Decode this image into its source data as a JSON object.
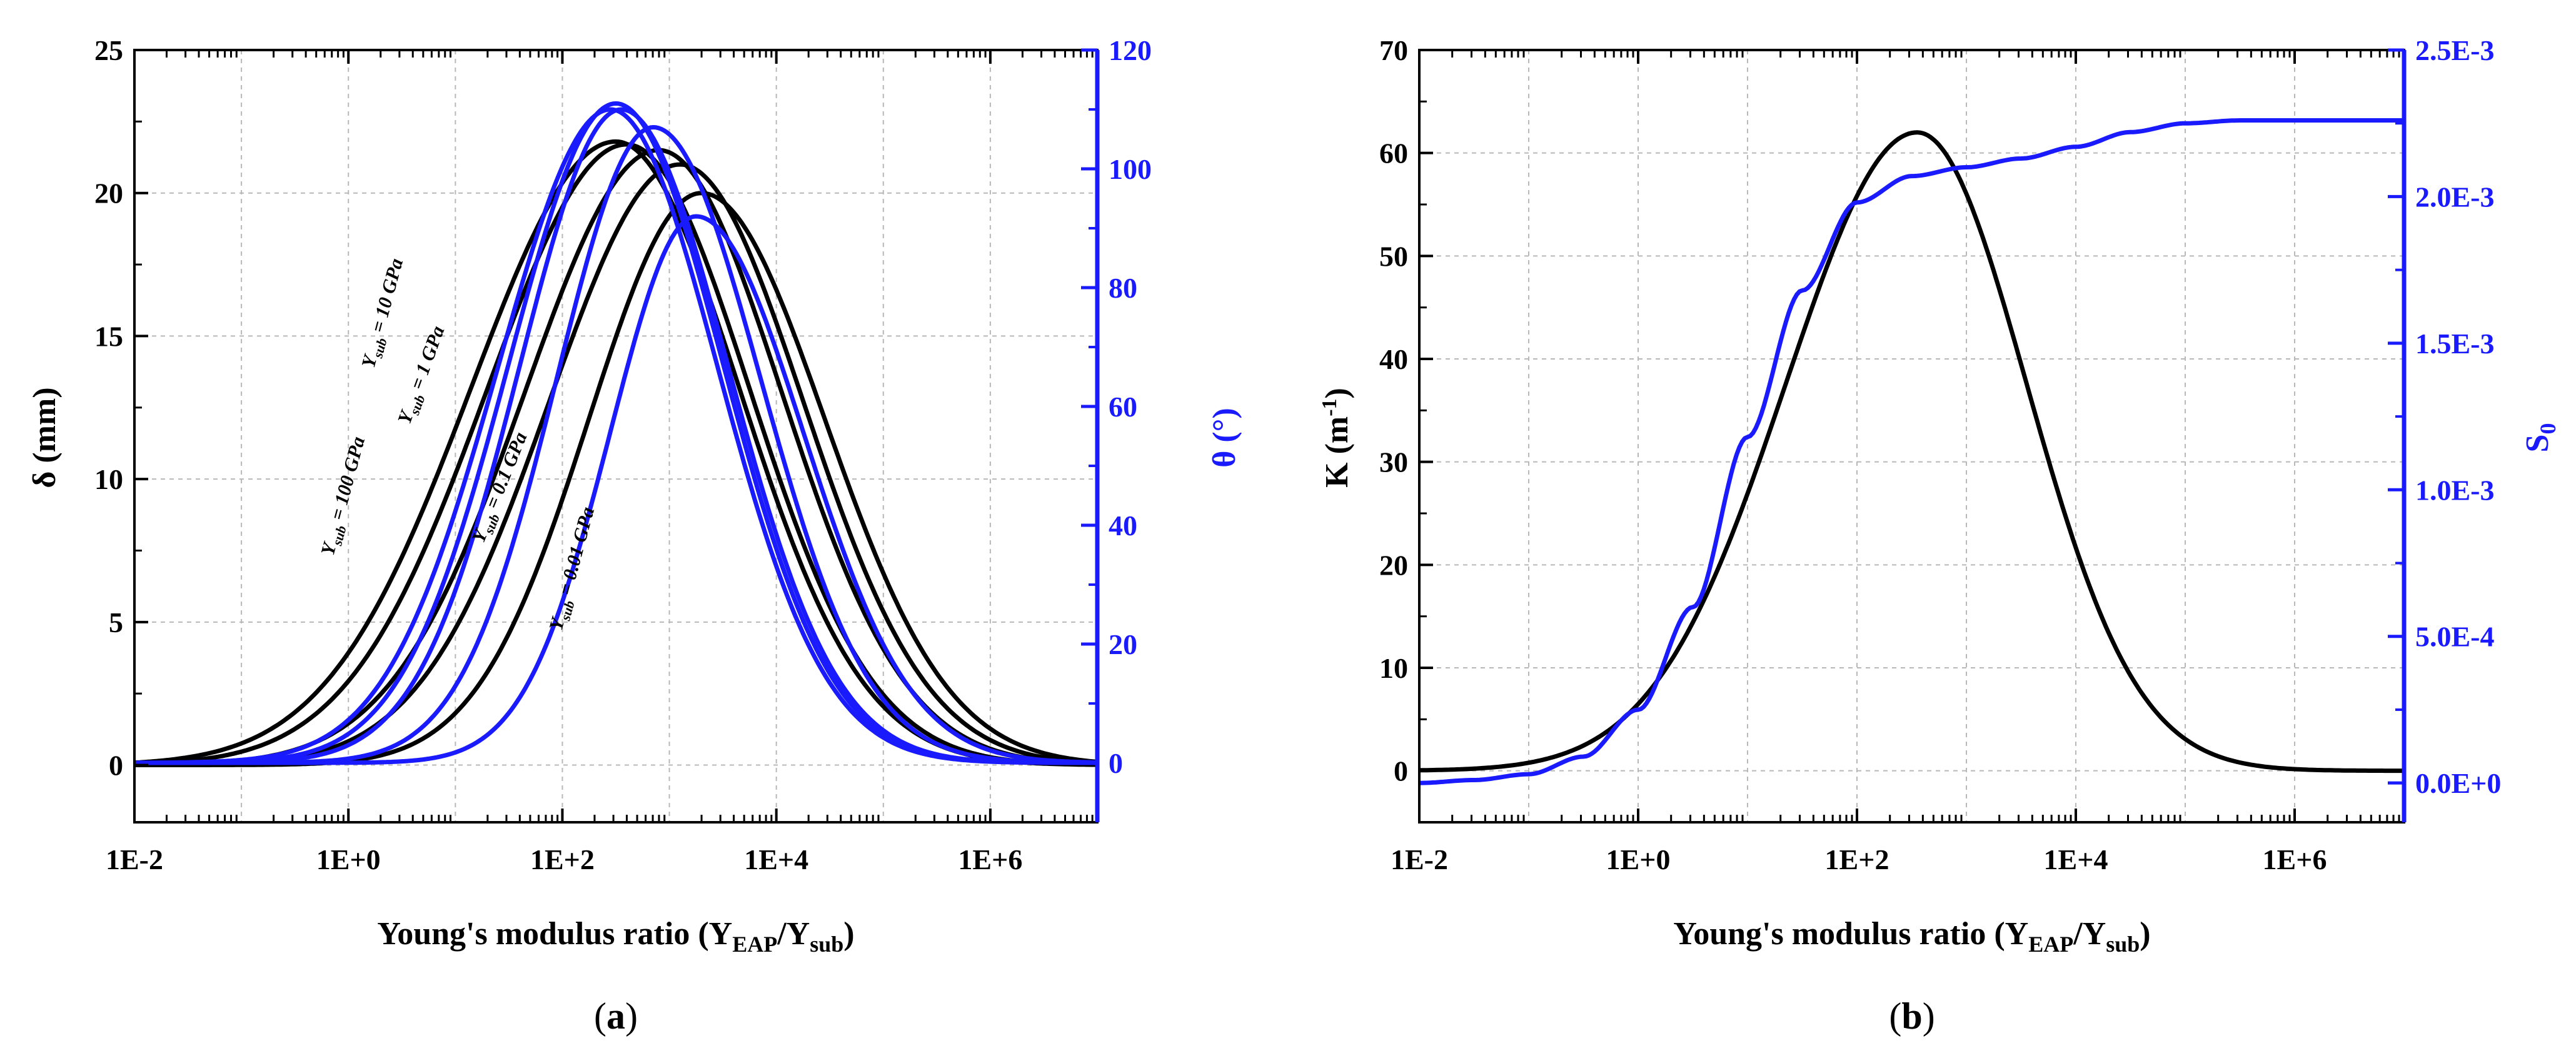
{
  "figure": {
    "xlabel_main": "Young's modulus ratio (Y",
    "xlabel_sub1": "EAP",
    "xlabel_mid": "/Y",
    "xlabel_sub2": "sub",
    "xlabel_end": ")"
  },
  "chart_data": [
    {
      "panel": "a",
      "panel_label_open": "(",
      "panel_label_letter": "a",
      "panel_label_close": ")",
      "type": "line",
      "x_scale": "log10",
      "xlim_exp": [
        -2,
        7
      ],
      "x_ticks_exp": [
        -2,
        0,
        2,
        4,
        6
      ],
      "x_tick_labels": [
        "1E-2",
        "1E+0",
        "1E+2",
        "1E+4",
        "1E+6"
      ],
      "ylim_left": [
        -2,
        25
      ],
      "y_ticks_left": [
        0,
        5,
        10,
        15,
        20,
        25
      ],
      "ylim_right": [
        -10,
        120
      ],
      "y_ticks_right": [
        0,
        20,
        40,
        60,
        80,
        100,
        120
      ],
      "ylabel_left": "δ (mm)",
      "ylabel_right": "θ (°)",
      "grid": true,
      "series": [
        {
          "name": "δ, Ysub = 100 GPa",
          "axis": "left",
          "color": "#000000",
          "peak": 21.8,
          "center_exp": 2.5,
          "wl": 1.35,
          "wr": 1.15
        },
        {
          "name": "δ, Ysub = 10 GPa",
          "axis": "left",
          "color": "#000000",
          "peak": 21.7,
          "center_exp": 2.6,
          "wl": 1.3,
          "wr": 1.15
        },
        {
          "name": "δ, Ysub = 1 GPa",
          "axis": "left",
          "color": "#000000",
          "peak": 21.5,
          "center_exp": 2.9,
          "wl": 1.25,
          "wr": 1.15
        },
        {
          "name": "δ, Ysub = 0.1 GPa",
          "axis": "left",
          "color": "#000000",
          "peak": 21.0,
          "center_exp": 3.1,
          "wl": 1.22,
          "wr": 1.15
        },
        {
          "name": "δ, Ysub = 0.01 GPa",
          "axis": "left",
          "color": "#000000",
          "peak": 20.0,
          "center_exp": 3.3,
          "wl": 1.05,
          "wr": 1.15
        },
        {
          "name": "θ, Ysub = 100 GPa",
          "axis": "right",
          "color": "#1a1aff",
          "peak": 110.0,
          "center_exp": 2.45,
          "wl": 1.05,
          "wr": 1.0
        },
        {
          "name": "θ, Ysub = 10 GPa",
          "axis": "right",
          "color": "#1a1aff",
          "peak": 111.0,
          "center_exp": 2.5,
          "wl": 1.0,
          "wr": 1.0
        },
        {
          "name": "θ, Ysub = 1 GPa",
          "axis": "right",
          "color": "#1a1aff",
          "peak": 110.0,
          "center_exp": 2.55,
          "wl": 0.95,
          "wr": 1.0
        },
        {
          "name": "θ, Ysub = 0.1 GPa",
          "axis": "right",
          "color": "#1a1aff",
          "peak": 107.0,
          "center_exp": 2.85,
          "wl": 0.9,
          "wr": 1.0
        },
        {
          "name": "θ, Ysub = 0.01 GPa",
          "axis": "right",
          "color": "#1a1aff",
          "peak": 92.0,
          "center_exp": 3.25,
          "wl": 0.8,
          "wr": 1.0
        }
      ],
      "annotations": [
        {
          "prefix": "Y",
          "sub": "sub",
          "value": " = 100 GPa"
        },
        {
          "prefix": "Y",
          "sub": "sub",
          "value": " = 10 GPa"
        },
        {
          "prefix": "Y",
          "sub": "sub",
          "value": " = 1 GPa"
        },
        {
          "prefix": "Y",
          "sub": "sub",
          "value": " = 0.1 GPa"
        },
        {
          "prefix": "Y",
          "sub": "sub",
          "value": " = 0.01 GPa"
        }
      ]
    },
    {
      "panel": "b",
      "panel_label_open": "(",
      "panel_label_letter": "b",
      "panel_label_close": ")",
      "type": "line",
      "x_scale": "log10",
      "xlim_exp": [
        -2,
        7
      ],
      "x_ticks_exp": [
        -2,
        0,
        2,
        4,
        6
      ],
      "x_tick_labels": [
        "1E-2",
        "1E+0",
        "1E+2",
        "1E+4",
        "1E+6"
      ],
      "ylim_left": [
        -5,
        70
      ],
      "y_ticks_left": [
        0,
        10,
        20,
        30,
        40,
        50,
        60,
        70
      ],
      "ylim_right": [
        -0.000134,
        0.0025
      ],
      "y_ticks_right": [
        0,
        0.0005,
        0.001,
        0.0015,
        0.002,
        0.0025
      ],
      "y_tick_labels_right": [
        "0.0E+0",
        "5.0E-4",
        "1.0E-3",
        "1.5E-3",
        "2.0E-3",
        "2.5E-3"
      ],
      "ylabel_left_main": "K (m",
      "ylabel_left_sup": "-1",
      "ylabel_left_end": ")",
      "ylabel_right_main": "S",
      "ylabel_right_sub": "0",
      "grid": true,
      "series": [
        {
          "name": "K",
          "axis": "left",
          "color": "#000000",
          "peak": 62.0,
          "center_exp": 2.55,
          "wl": 1.2,
          "wr": 1.0
        },
        {
          "name": "S0",
          "axis": "right",
          "color": "#1a1aff",
          "points_exp": [
            [
              -2,
              0.0
            ],
            [
              -1.5,
              1e-05
            ],
            [
              -1,
              3e-05
            ],
            [
              -0.5,
              9e-05
            ],
            [
              0,
              0.00025
            ],
            [
              0.5,
              0.0006
            ],
            [
              1,
              0.00118
            ],
            [
              1.5,
              0.00168
            ],
            [
              2,
              0.00198
            ],
            [
              2.5,
              0.00207
            ],
            [
              3,
              0.0021
            ],
            [
              3.5,
              0.00213
            ],
            [
              4,
              0.00217
            ],
            [
              4.5,
              0.00222
            ],
            [
              5,
              0.00225
            ],
            [
              5.5,
              0.00226
            ],
            [
              6,
              0.00226
            ],
            [
              7,
              0.00226
            ]
          ]
        }
      ]
    }
  ]
}
